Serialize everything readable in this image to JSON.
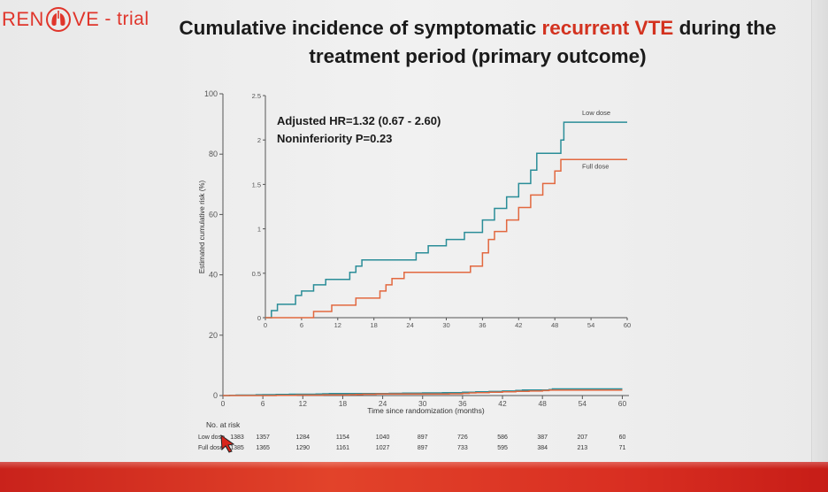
{
  "header": {
    "logo_prefix": "REN",
    "logo_suffix": "VE",
    "logo_dash": "- trial",
    "title_part1": "Cumulative incidence of symptomatic ",
    "title_accent": "recurrent VTE",
    "title_part2": " during the",
    "title_line2": "treatment period (primary outcome)"
  },
  "colors": {
    "low_dose": "#2a8d98",
    "full_dose": "#e2683f",
    "accent": "#d3321f",
    "axis": "#555555"
  },
  "chart_data": {
    "type": "line",
    "xlabel": "Time since randomization (months)",
    "ylabel": "Estimated cumulative risk (%)",
    "x_ticks": [
      0,
      6,
      12,
      18,
      24,
      30,
      36,
      42,
      48,
      54,
      60
    ],
    "xlim": [
      0,
      61
    ],
    "main": {
      "ylim": [
        0,
        100
      ],
      "y_ticks": [
        0,
        20,
        40,
        60,
        80,
        100
      ]
    },
    "inset": {
      "ylim": [
        0,
        2.5
      ],
      "y_ticks": [
        0,
        0.5,
        1,
        1.5,
        2,
        2.5
      ],
      "y_tick_labels": [
        "0",
        "0.5",
        "1",
        "1.5",
        "2",
        "2.5"
      ],
      "annotation_line1": "Adjusted HR=1.32 (0.67 - 2.60)",
      "annotation_line2": "Noninferiority P=0.23"
    },
    "series": [
      {
        "name": "Low dose",
        "steps": [
          [
            0,
            0
          ],
          [
            1,
            0.08
          ],
          [
            2,
            0.15
          ],
          [
            5,
            0.25
          ],
          [
            6,
            0.3
          ],
          [
            8,
            0.37
          ],
          [
            10,
            0.43
          ],
          [
            14,
            0.51
          ],
          [
            15,
            0.58
          ],
          [
            16,
            0.65
          ],
          [
            25,
            0.73
          ],
          [
            27,
            0.81
          ],
          [
            30,
            0.88
          ],
          [
            33,
            0.96
          ],
          [
            36,
            1.1
          ],
          [
            38,
            1.23
          ],
          [
            40,
            1.36
          ],
          [
            42,
            1.51
          ],
          [
            44,
            1.66
          ],
          [
            45,
            1.85
          ],
          [
            49,
            2.0
          ],
          [
            49.5,
            2.2
          ],
          [
            60,
            2.2
          ]
        ]
      },
      {
        "name": "Full dose",
        "steps": [
          [
            0,
            0
          ],
          [
            8,
            0.07
          ],
          [
            11,
            0.14
          ],
          [
            15,
            0.22
          ],
          [
            19,
            0.3
          ],
          [
            20,
            0.37
          ],
          [
            21,
            0.44
          ],
          [
            23,
            0.51
          ],
          [
            34,
            0.58
          ],
          [
            36,
            0.73
          ],
          [
            37,
            0.88
          ],
          [
            38,
            0.97
          ],
          [
            40,
            1.1
          ],
          [
            42,
            1.24
          ],
          [
            44,
            1.38
          ],
          [
            46,
            1.51
          ],
          [
            48,
            1.65
          ],
          [
            49,
            1.78
          ],
          [
            60,
            1.78
          ]
        ]
      }
    ],
    "at_risk": {
      "title": "No. at risk",
      "rows": [
        {
          "label": "Low dose",
          "values": [
            "1383",
            "1357",
            "1284",
            "1154",
            "1040",
            "897",
            "726",
            "586",
            "387",
            "207",
            "60"
          ]
        },
        {
          "label": "Full dose",
          "values": [
            "1385",
            "1365",
            "1290",
            "1161",
            "1027",
            "897",
            "733",
            "595",
            "384",
            "213",
            "71"
          ]
        }
      ]
    }
  }
}
